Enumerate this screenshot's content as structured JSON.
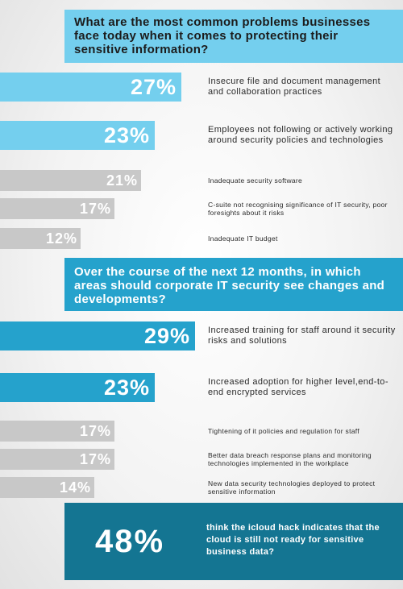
{
  "colors": {
    "q1_top": "#74cfee",
    "q2_top": "#25a2cc",
    "other": "#c8c8c8",
    "callout": "#147592"
  },
  "chart_data": [
    {
      "type": "bar",
      "title": "What are the most common problems businesses face today when it comes to protecting their sensitive information?",
      "xlim": [
        0,
        100
      ],
      "categories": [
        "Insecure file and document management and collaboration practices",
        "Employees not following or actively working around security policies and technologies",
        "Inadequate security software",
        "C-suite not recognising significance of IT security, poor foresights about it risks",
        "Inadequate IT budget"
      ],
      "values": [
        27,
        23,
        21,
        17,
        12
      ],
      "value_labels": [
        "27%",
        "23%",
        "21%",
        "17%",
        "12%"
      ]
    },
    {
      "type": "bar",
      "title": "Over the course of the next 12 months, in which areas should corporate IT security see changes and developments?",
      "xlim": [
        0,
        100
      ],
      "categories": [
        "Increased training for staff around it security risks and solutions",
        "Increased adoption for higher level,end-to-end encrypted services",
        "Tightening of it policies and regulation for staff",
        "Better data breach response plans and monitoring technologies implemented in the workplace",
        "New data security technologies deployed to protect sensitive information"
      ],
      "values": [
        29,
        23,
        17,
        17,
        14
      ],
      "value_labels": [
        "29%",
        "23%",
        "17%",
        "17%",
        "14%"
      ]
    }
  ],
  "callout": {
    "value": "48%",
    "text": "think the icloud hack indicates that the cloud is still not ready for sensitive business data?"
  }
}
